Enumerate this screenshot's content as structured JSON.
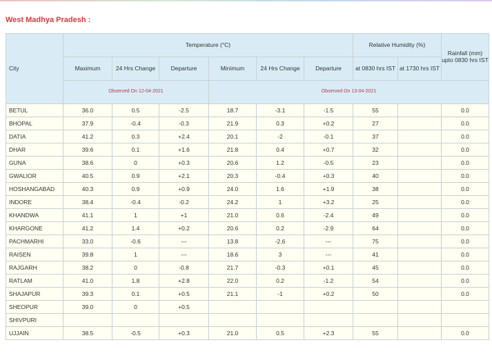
{
  "title": "West Madhya Pradesh :",
  "headers": {
    "city": "City",
    "temperature": "Temperature (°C)",
    "humidity": "Relative Humidity (%)",
    "rainfall": "Rainfall (mm) upto 0830 hrs IST",
    "sub": [
      "Maximum",
      "24 Hrs Change",
      "Departure",
      "Minimum",
      "24 Hrs Change",
      "Departure",
      "at 0830 hrs IST",
      "at 1730 hrs IST"
    ],
    "observed_max": "Observed On 12-04-2021",
    "observed_min": "Observed On 13-04-2021"
  },
  "rows": [
    [
      "BETUL",
      "36.0",
      "0.5",
      "-2.5",
      "18.7",
      "-3.1",
      "-1.5",
      "55",
      "",
      "0.0"
    ],
    [
      "BHOPAL",
      "37.9",
      "-0.4",
      "-0.3",
      "21.9",
      "0.3",
      "+0.2",
      "27",
      "",
      "0.0"
    ],
    [
      "DATIA",
      "41.2",
      "0.3",
      "+2.4",
      "20.1",
      "-2",
      "-0.1",
      "37",
      "",
      "0.0"
    ],
    [
      "DHAR",
      "39.6",
      "0.1",
      "+1.6",
      "21.8",
      "0.4",
      "+0.7",
      "32",
      "",
      "0.0"
    ],
    [
      "GUNA",
      "38.6",
      "0",
      "+0.3",
      "20.6",
      "1.2",
      "-0.5",
      "23",
      "",
      "0.0"
    ],
    [
      "GWALIOR",
      "40.5",
      "0.9",
      "+2.1",
      "20.3",
      "-0.4",
      "+0.3",
      "40",
      "",
      "0.0"
    ],
    [
      "HOSHANGABAD",
      "40.3",
      "0.9",
      "+0.9",
      "24.0",
      "1.6",
      "+1.9",
      "38",
      "",
      "0.0"
    ],
    [
      "INDORE",
      "38.4",
      "-0.4",
      "-0.2",
      "24.2",
      "1",
      "+3.2",
      "25",
      "",
      "0.0"
    ],
    [
      "KHANDWA",
      "41.1",
      "1",
      "+1",
      "21.0",
      "0.6",
      "-2.4",
      "49",
      "",
      "0.0"
    ],
    [
      "KHARGONE",
      "41.2",
      "1.4",
      "+0.2",
      "20.6",
      "0.2",
      "-2.9",
      "64",
      "",
      "0.0"
    ],
    [
      "PACHMARHI",
      "33.0",
      "-0.6",
      "---",
      "13.8",
      "-2.6",
      "---",
      "75",
      "",
      "0.0"
    ],
    [
      "RAISEN",
      "39.8",
      "1",
      "---",
      "18.6",
      "3",
      "---",
      "41",
      "",
      "0.0"
    ],
    [
      "RAJGARH",
      "38.2",
      "0",
      "-0.8",
      "21.7",
      "-0.3",
      "+0.1",
      "45",
      "",
      "0.0"
    ],
    [
      "RATLAM",
      "41.0",
      "1.8",
      "+2.8",
      "22.0",
      "0.2",
      "-1.2",
      "54",
      "",
      "0.0"
    ],
    [
      "SHAJAPUR",
      "39.3",
      "0.1",
      "+0.5",
      "21.1",
      "-1",
      "+0.2",
      "50",
      "",
      "0.0"
    ],
    [
      "SHEOPUR",
      "39.0",
      "0",
      "+0.5",
      "",
      "",
      "",
      "",
      "",
      ""
    ],
    [
      "SHIVPURI",
      "",
      "",
      "",
      "",
      "",
      "",
      "",
      "",
      ""
    ],
    [
      "UJJAIN",
      "38.5",
      "-0.5",
      "+0.3",
      "21.0",
      "0.5",
      "+2.3",
      "55",
      "",
      "0.0"
    ]
  ]
}
